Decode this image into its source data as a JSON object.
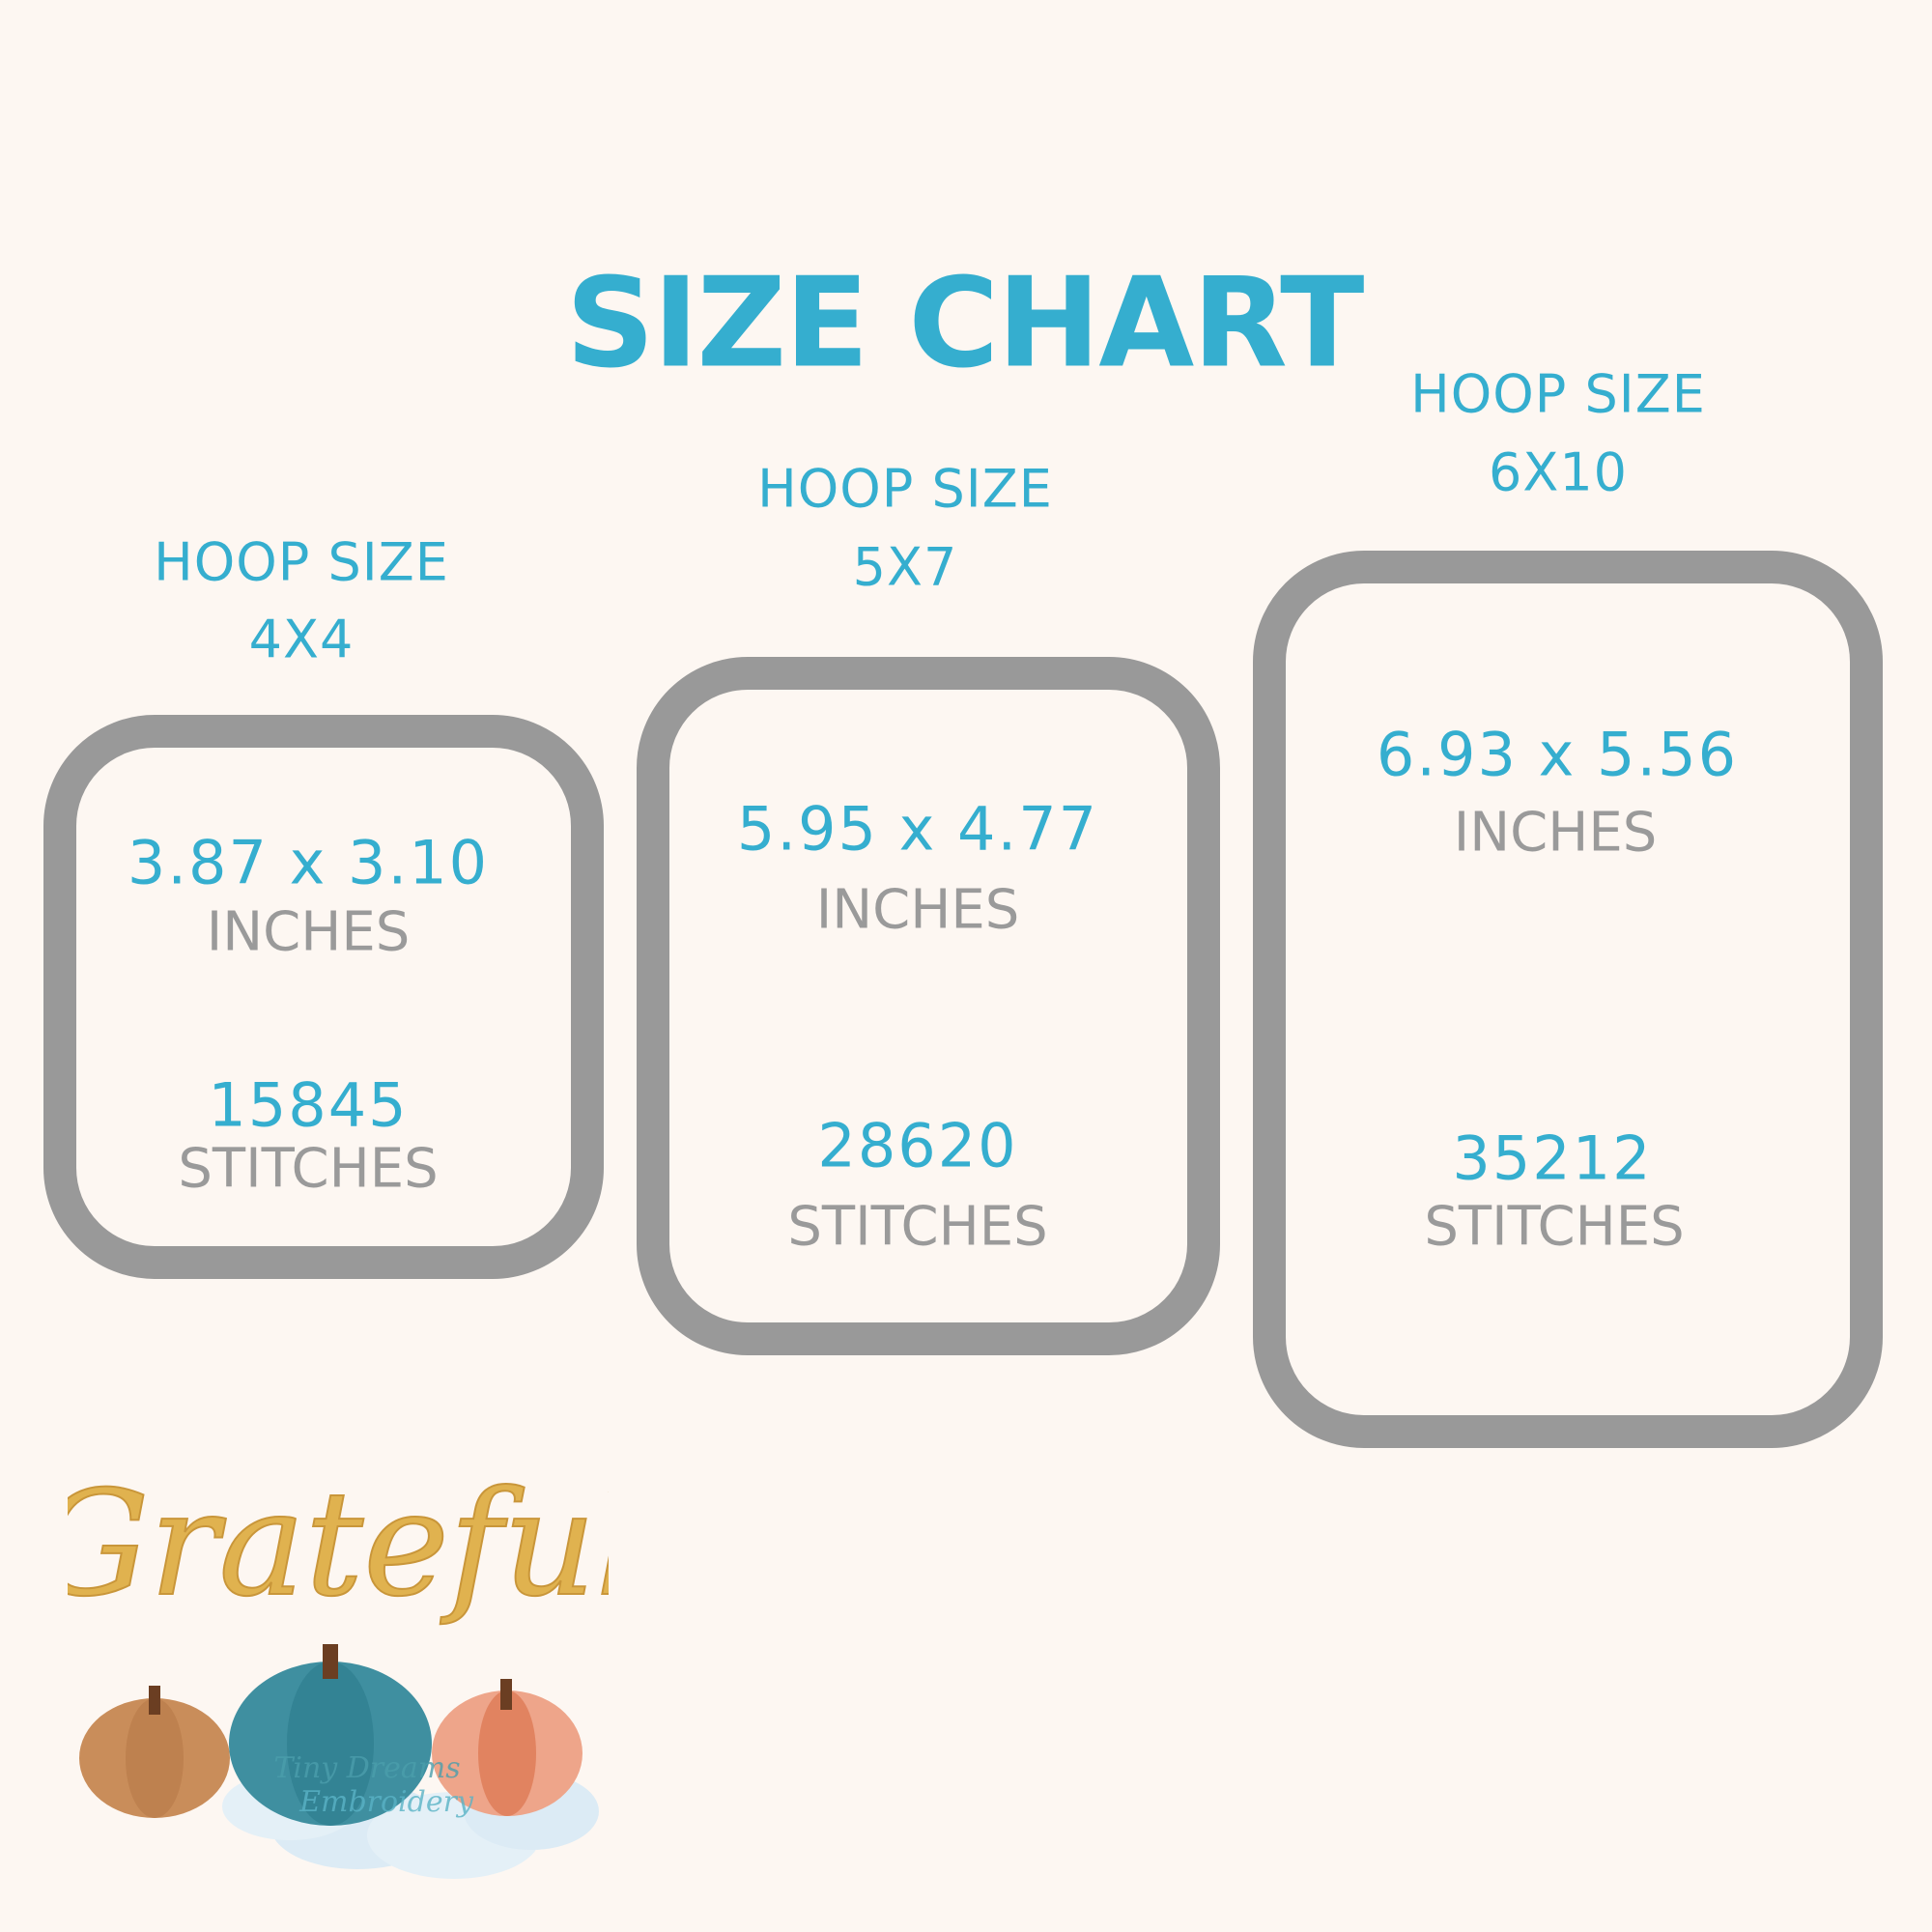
{
  "title": "SIZE CHART",
  "colors": {
    "accent": "#35aecf",
    "hoop_outline": "#999999",
    "secondary_text": "#9a9a9a",
    "background": "#fdf7f2",
    "logo_gold": "#e0b24f"
  },
  "hoops": [
    {
      "label": "HOOP SIZE",
      "size": "4X4",
      "dimensions": "3.87 x 3.10",
      "dimension_unit": "INCHES",
      "stitches": "15845",
      "stitches_label": "STITCHES"
    },
    {
      "label": "HOOP SIZE",
      "size": "5X7",
      "dimensions": "5.95 x 4.77",
      "dimension_unit": "INCHES",
      "stitches": "28620",
      "stitches_label": "STITCHES"
    },
    {
      "label": "HOOP SIZE",
      "size": "6X10",
      "dimensions": "6.93 x 5.56",
      "dimension_unit": "INCHES",
      "stitches": "35212",
      "stitches_label": "STITCHES"
    }
  ],
  "logo": {
    "design_word": "Grateful",
    "watermark_line1": "Tiny Dreams",
    "watermark_line2": "Embroidery"
  }
}
